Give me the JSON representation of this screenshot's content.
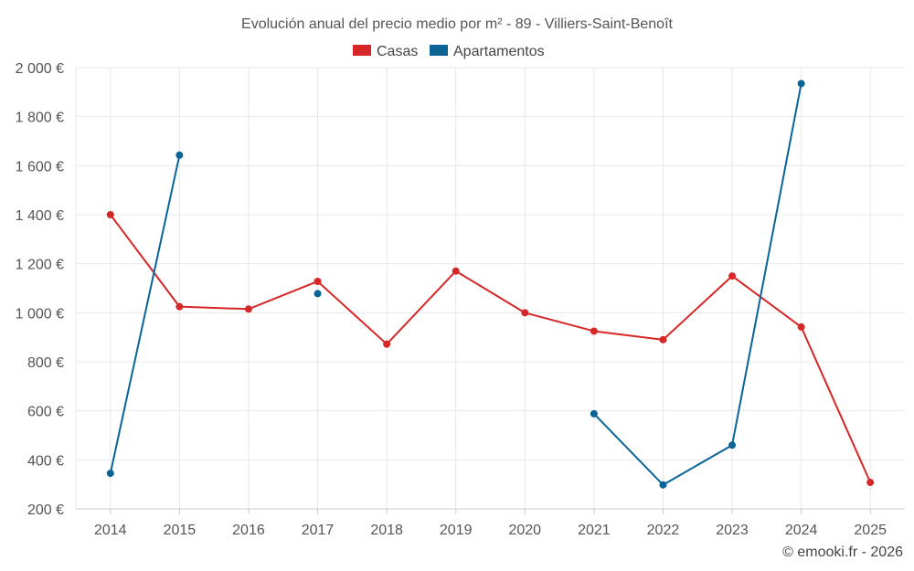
{
  "chart_data": {
    "type": "line",
    "title": "Evolución anual del precio medio por m² - 89 - Villiers-Saint-Benoît",
    "categories": [
      "2014",
      "2015",
      "2016",
      "2017",
      "2018",
      "2019",
      "2020",
      "2021",
      "2022",
      "2023",
      "2024",
      "2025"
    ],
    "ylim": [
      200,
      2000
    ],
    "yticks": [
      200,
      400,
      600,
      800,
      1000,
      1200,
      1400,
      1600,
      1800,
      2000
    ],
    "ytick_labels": [
      "200 €",
      "400 €",
      "600 €",
      "800 €",
      "1 000 €",
      "1 200 €",
      "1 400 €",
      "1 600 €",
      "1 800 €",
      "2 000 €"
    ],
    "grid": true,
    "legend_position": "top-center",
    "series": [
      {
        "name": "Casas",
        "color": "#d62728",
        "values": [
          1400,
          1025,
          1015,
          1128,
          872,
          1170,
          1000,
          925,
          890,
          1150,
          942,
          308
        ]
      },
      {
        "name": "Apartamentos",
        "color": "#0a6496",
        "values": [
          345,
          1643,
          null,
          1078,
          null,
          null,
          null,
          588,
          298,
          460,
          1935,
          null
        ]
      }
    ]
  },
  "credit": "© emooki.fr - 2026"
}
